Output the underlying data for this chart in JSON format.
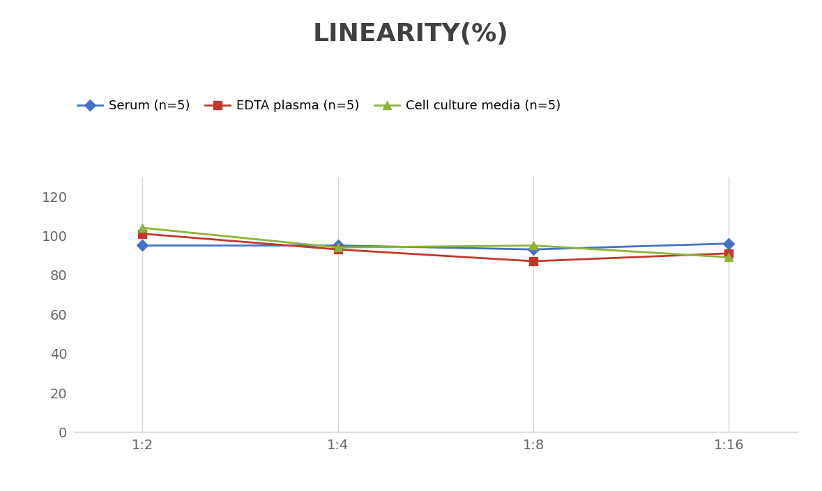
{
  "title": "LINEARITY(%)",
  "x_labels": [
    "1:2",
    "1:4",
    "1:8",
    "1:16"
  ],
  "series": [
    {
      "name": "Serum (n=5)",
      "values": [
        95,
        95,
        93,
        96
      ],
      "color": "#4472C4",
      "marker": "D",
      "marker_size": 8,
      "linewidth": 2
    },
    {
      "name": "EDTA plasma (n=5)",
      "values": [
        101,
        93,
        87,
        91
      ],
      "color": "#C0392B",
      "marker": "s",
      "marker_size": 8,
      "linewidth": 2
    },
    {
      "name": "Cell culture media (n=5)",
      "values": [
        104,
        94,
        95,
        89
      ],
      "color": "#8DB33A",
      "marker": "^",
      "marker_size": 9,
      "linewidth": 2
    }
  ],
  "ylim": [
    0,
    130
  ],
  "yticks": [
    0,
    20,
    40,
    60,
    80,
    100,
    120
  ],
  "grid_color": "#D5D5D5",
  "background_color": "#FFFFFF",
  "title_fontsize": 26,
  "legend_fontsize": 13,
  "tick_fontsize": 14,
  "title_color": "#404040"
}
